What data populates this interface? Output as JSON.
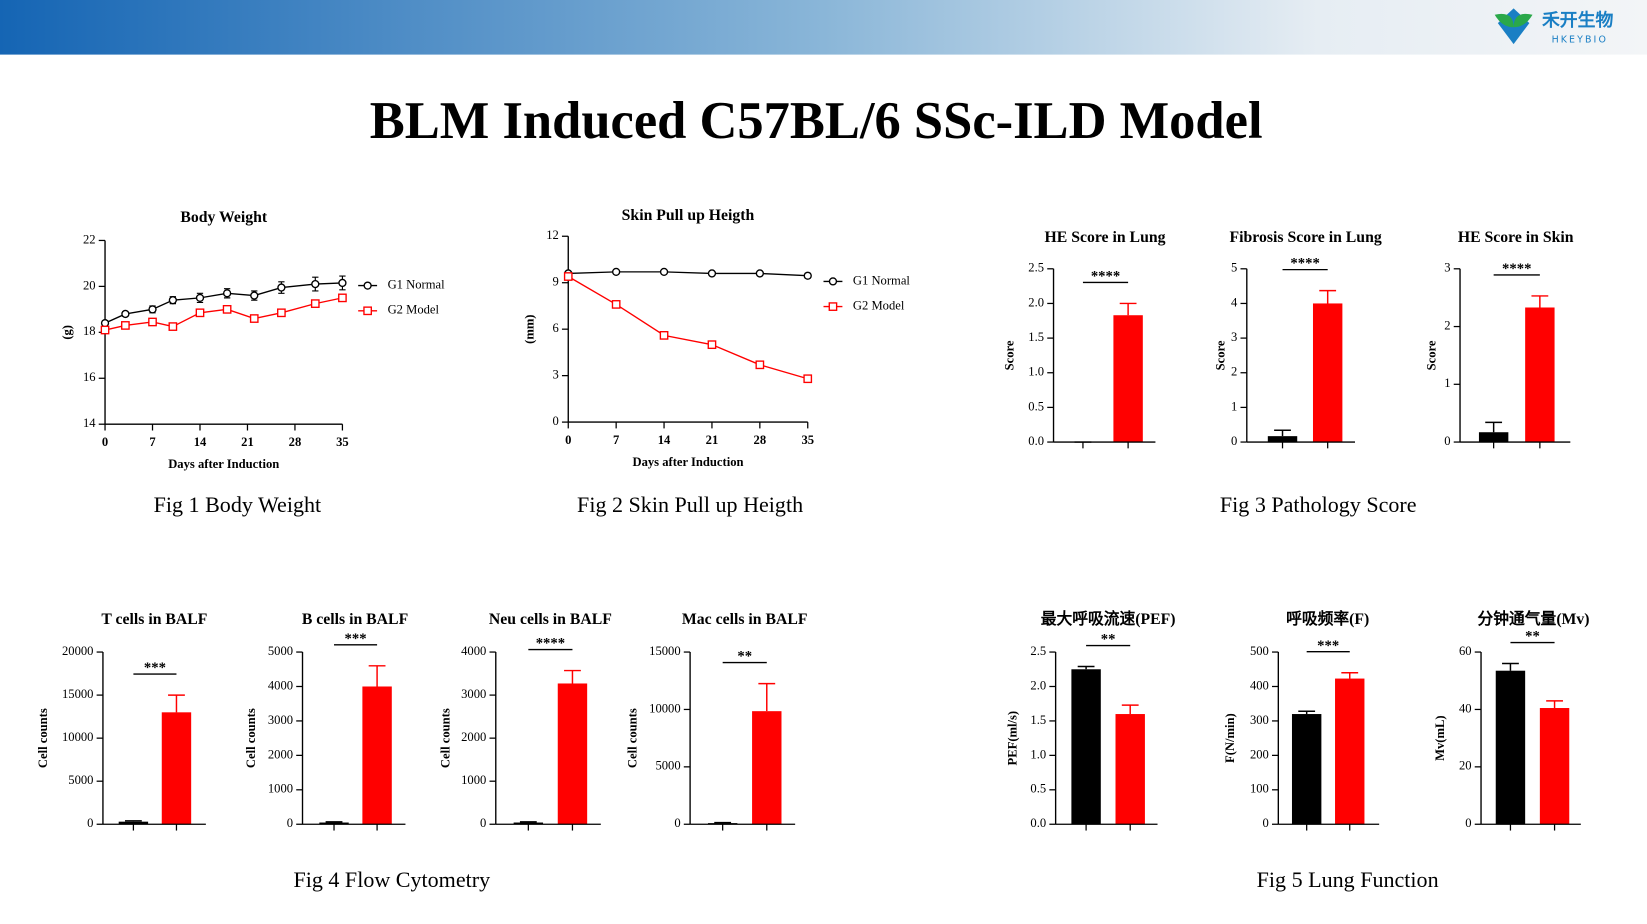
{
  "header": {
    "title": "BLM Induced C57BL/6 SSc-ILD Model",
    "logo_name": "禾开生物",
    "logo_sub": "HKEYBIO"
  },
  "chart_data": [
    {
      "type": "line",
      "title": "Body Weight",
      "x_label": "Days after Induction",
      "y_label": "(g)",
      "x": [
        0,
        3,
        7,
        10,
        14,
        18,
        22,
        26,
        31,
        35
      ],
      "series": [
        {
          "name": "G1 Normal",
          "color": "#000000",
          "marker": "circle",
          "values": [
            18.4,
            18.8,
            19.0,
            19.4,
            19.5,
            19.7,
            19.6,
            19.95,
            20.1,
            20.15
          ],
          "errors": [
            0.1,
            0.1,
            0.15,
            0.15,
            0.2,
            0.2,
            0.2,
            0.25,
            0.3,
            0.3
          ]
        },
        {
          "name": "G2 Model",
          "color": "#ff0000",
          "marker": "square",
          "values": [
            18.1,
            18.3,
            18.45,
            18.25,
            18.85,
            19.0,
            18.6,
            18.85,
            19.25,
            19.5
          ],
          "errors": [
            0.1,
            0.1,
            0.1,
            0.1,
            0.1,
            0.15,
            0.1,
            0.1,
            0.1,
            0.1
          ]
        }
      ],
      "xlim": [
        0,
        35
      ],
      "xticks": [
        0,
        7,
        14,
        21,
        28,
        35
      ],
      "ylim": [
        14,
        22
      ],
      "yticks": [
        14,
        16,
        18,
        20,
        22
      ]
    },
    {
      "type": "line",
      "title": "Skin Pull up Heigth",
      "x_label": "Days after Induction",
      "y_label": "(mm)",
      "x": [
        0,
        7,
        14,
        21,
        28,
        35
      ],
      "series": [
        {
          "name": "G1 Normal",
          "color": "#000000",
          "marker": "circle",
          "values": [
            9.6,
            9.7,
            9.7,
            9.6,
            9.6,
            9.45
          ],
          "errors": [
            0.1,
            0.05,
            0.05,
            0.05,
            0.05,
            0.15
          ]
        },
        {
          "name": "G2 Model",
          "color": "#ff0000",
          "marker": "square",
          "values": [
            9.4,
            7.6,
            5.6,
            5.0,
            3.7,
            2.8
          ],
          "errors": [
            0.1,
            0.1,
            0.2,
            0.1,
            0.1,
            0.1
          ]
        }
      ],
      "xlim": [
        0,
        35
      ],
      "xticks": [
        0,
        7,
        14,
        21,
        28,
        35
      ],
      "ylim": [
        0,
        12
      ],
      "yticks": [
        0,
        3,
        6,
        9,
        12
      ]
    },
    {
      "type": "bar",
      "title": "HE Score in Lung",
      "y_label": "Score",
      "categories": [
        null,
        null
      ],
      "colors": [
        "#000000",
        "#ff0000"
      ],
      "values": [
        0,
        1.83
      ],
      "errors": [
        0,
        0.17
      ],
      "significance": "****",
      "ylim": [
        0,
        2.5
      ],
      "yticks": [
        {
          "value": 0,
          "label": "0.0"
        },
        0.5,
        {
          "value": 1,
          "label": "1.0"
        },
        1.5,
        {
          "value": 2,
          "label": "2.0"
        },
        2.5
      ]
    },
    {
      "type": "bar",
      "title": "Fibrosis Score in Lung",
      "y_label": "Score",
      "categories": [
        null,
        null
      ],
      "colors": [
        "#000000",
        "#ff0000"
      ],
      "values": [
        0.17,
        4.0
      ],
      "errors": [
        0.17,
        0.37
      ],
      "significance": "****",
      "ylim": [
        0,
        5
      ],
      "yticks": [
        0,
        1,
        2,
        3,
        4,
        5
      ]
    },
    {
      "type": "bar",
      "title": "HE Score in Skin",
      "y_label": "Score",
      "categories": [
        null,
        null
      ],
      "colors": [
        "#000000",
        "#ff0000"
      ],
      "values": [
        0.17,
        2.33
      ],
      "errors": [
        0.17,
        0.2
      ],
      "significance": "****",
      "ylim": [
        0,
        3
      ],
      "yticks": [
        0,
        1,
        2,
        3
      ]
    },
    {
      "type": "bar",
      "title": "T cells in BALF",
      "y_label": "Cell counts",
      "categories": [
        null,
        null
      ],
      "colors": [
        "#000000",
        "#ff0000"
      ],
      "values": [
        300,
        13000
      ],
      "errors": [
        100,
        2000
      ],
      "significance": "***",
      "ylim": [
        0,
        20000
      ],
      "yticks": [
        0,
        5000,
        10000,
        15000,
        20000
      ]
    },
    {
      "type": "bar",
      "title": "B cells in BALF",
      "y_label": "Cell counts",
      "categories": [
        null,
        null
      ],
      "colors": [
        "#000000",
        "#ff0000"
      ],
      "values": [
        50,
        4000
      ],
      "errors": [
        20,
        600
      ],
      "significance": "***",
      "ylim": [
        0,
        5000
      ],
      "yticks": [
        0,
        1000,
        2000,
        3000,
        4000,
        5000
      ]
    },
    {
      "type": "bar",
      "title": "Neu cells in BALF",
      "y_label": "Cell counts",
      "categories": [
        null,
        null
      ],
      "colors": [
        "#000000",
        "#ff0000"
      ],
      "values": [
        40,
        3270
      ],
      "errors": [
        15,
        300
      ],
      "significance": "****",
      "ylim": [
        0,
        4000
      ],
      "yticks": [
        0,
        1000,
        2000,
        3000,
        4000
      ]
    },
    {
      "type": "bar",
      "title": "Mac cells in BALF",
      "y_label": "Cell counts",
      "categories": [
        null,
        null
      ],
      "colors": [
        "#000000",
        "#ff0000"
      ],
      "values": [
        100,
        9850
      ],
      "errors": [
        40,
        2400
      ],
      "significance": "**",
      "ylim": [
        0,
        15000
      ],
      "yticks": [
        0,
        5000,
        10000,
        15000
      ]
    },
    {
      "type": "bar",
      "title": "最大呼吸流速(PEF)",
      "y_label": "PEF(ml/s)",
      "categories": [
        null,
        null
      ],
      "colors": [
        "#000000",
        "#ff0000"
      ],
      "values": [
        2.25,
        1.6
      ],
      "errors": [
        0.04,
        0.13
      ],
      "significance": "**",
      "ylim": [
        0,
        2.5
      ],
      "yticks": [
        {
          "value": 0,
          "label": "0.0"
        },
        0.5,
        {
          "value": 1,
          "label": "1.0"
        },
        1.5,
        {
          "value": 2,
          "label": "2.0"
        },
        2.5
      ]
    },
    {
      "type": "bar",
      "title": "呼吸频率(F)",
      "y_label": "F(N/min)",
      "categories": [
        null,
        null
      ],
      "colors": [
        "#000000",
        "#ff0000"
      ],
      "values": [
        320,
        423
      ],
      "errors": [
        8,
        17
      ],
      "significance": "***",
      "ylim": [
        0,
        500
      ],
      "yticks": [
        0,
        100,
        200,
        300,
        400,
        500
      ]
    },
    {
      "type": "bar",
      "title": "分钟通气量(Mv)",
      "y_label": "Mv(mL)",
      "categories": [
        null,
        null
      ],
      "colors": [
        "#000000",
        "#ff0000"
      ],
      "values": [
        53.5,
        40.5
      ],
      "errors": [
        2.5,
        2.5
      ],
      "significance": "**",
      "ylim": [
        0,
        60
      ],
      "yticks": [
        0,
        20,
        40,
        60
      ]
    }
  ],
  "captions": [
    "Fig 1 Body Weight",
    "Fig 2 Skin Pull up Heigth",
    "Fig 3 Pathology Score",
    "Fig 4 Flow Cytometry",
    "Fig 5 Lung Function"
  ]
}
